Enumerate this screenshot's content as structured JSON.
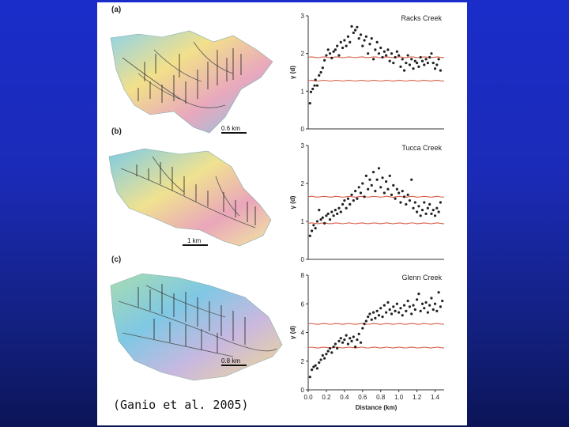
{
  "citation": "(Ganio et al. 2005)",
  "panels": [
    {
      "label": "(a)",
      "scale": "0.6 km"
    },
    {
      "label": "(b)",
      "scale": "1 km"
    },
    {
      "label": "(c)",
      "scale": "0.8 km"
    }
  ],
  "colors": {
    "background": "#1a2dc9",
    "points": "#222222",
    "envelope": "#d9604a",
    "map_high": "#e8b0c0",
    "map_low": "#7fd0e8"
  },
  "chart_data": [
    {
      "type": "scatter",
      "title": "Racks Creek",
      "xlabel": "",
      "ylabel": "γ (d)",
      "xlim": [
        0,
        1.5
      ],
      "ylim": [
        0,
        3
      ],
      "yticks": [
        0,
        1,
        2,
        3
      ],
      "xticks": [],
      "series": [
        {
          "values": [
            [
              0.02,
              0.68
            ],
            [
              0.03,
              0.98
            ],
            [
              0.05,
              1.06
            ],
            [
              0.07,
              1.15
            ],
            [
              0.08,
              1.3
            ],
            [
              0.1,
              1.15
            ],
            [
              0.12,
              1.42
            ],
            [
              0.14,
              1.5
            ],
            [
              0.16,
              1.62
            ],
            [
              0.18,
              1.82
            ],
            [
              0.2,
              1.95
            ],
            [
              0.22,
              2.1
            ],
            [
              0.24,
              2.0
            ],
            [
              0.26,
              1.88
            ],
            [
              0.28,
              2.05
            ],
            [
              0.3,
              2.1
            ],
            [
              0.32,
              2.2
            ],
            [
              0.34,
              1.95
            ],
            [
              0.36,
              2.3
            ],
            [
              0.38,
              2.15
            ],
            [
              0.4,
              2.35
            ],
            [
              0.42,
              2.2
            ],
            [
              0.44,
              2.45
            ],
            [
              0.46,
              2.3
            ],
            [
              0.48,
              2.72
            ],
            [
              0.5,
              2.55
            ],
            [
              0.52,
              2.62
            ],
            [
              0.54,
              2.7
            ],
            [
              0.56,
              2.4
            ],
            [
              0.58,
              2.5
            ],
            [
              0.6,
              2.2
            ],
            [
              0.62,
              2.35
            ],
            [
              0.64,
              2.45
            ],
            [
              0.66,
              2.0
            ],
            [
              0.68,
              2.25
            ],
            [
              0.7,
              2.4
            ],
            [
              0.72,
              1.85
            ],
            [
              0.74,
              2.1
            ],
            [
              0.76,
              2.3
            ],
            [
              0.78,
              2.0
            ],
            [
              0.8,
              2.15
            ],
            [
              0.82,
              1.9
            ],
            [
              0.84,
              2.05
            ],
            [
              0.86,
              1.95
            ],
            [
              0.88,
              2.1
            ],
            [
              0.9,
              1.8
            ],
            [
              0.92,
              2.0
            ],
            [
              0.94,
              1.75
            ],
            [
              0.96,
              1.9
            ],
            [
              0.98,
              2.05
            ],
            [
              1.0,
              1.95
            ],
            [
              1.02,
              1.65
            ],
            [
              1.04,
              1.85
            ],
            [
              1.06,
              1.55
            ],
            [
              1.08,
              1.75
            ],
            [
              1.1,
              1.95
            ],
            [
              1.12,
              1.7
            ],
            [
              1.14,
              1.85
            ],
            [
              1.16,
              1.6
            ],
            [
              1.18,
              1.8
            ],
            [
              1.2,
              1.75
            ],
            [
              1.22,
              1.65
            ],
            [
              1.24,
              1.9
            ],
            [
              1.26,
              1.8
            ],
            [
              1.28,
              1.7
            ],
            [
              1.3,
              1.85
            ],
            [
              1.32,
              1.75
            ],
            [
              1.34,
              1.9
            ],
            [
              1.36,
              2.0
            ],
            [
              1.38,
              1.75
            ],
            [
              1.4,
              1.6
            ],
            [
              1.42,
              1.7
            ],
            [
              1.44,
              1.85
            ],
            [
              1.46,
              1.55
            ]
          ]
        }
      ],
      "envelope": [
        1.9,
        1.28
      ]
    },
    {
      "type": "scatter",
      "title": "Tucca Creek",
      "xlabel": "",
      "ylabel": "γ (d)",
      "xlim": [
        0,
        1.5
      ],
      "ylim": [
        0,
        3
      ],
      "yticks": [
        0,
        1,
        2,
        3
      ],
      "xticks": [],
      "series": [
        {
          "values": [
            [
              0.02,
              0.62
            ],
            [
              0.04,
              0.75
            ],
            [
              0.06,
              0.9
            ],
            [
              0.08,
              0.82
            ],
            [
              0.1,
              1.0
            ],
            [
              0.12,
              1.3
            ],
            [
              0.14,
              1.05
            ],
            [
              0.16,
              1.1
            ],
            [
              0.18,
              0.95
            ],
            [
              0.2,
              1.15
            ],
            [
              0.22,
              1.2
            ],
            [
              0.24,
              1.05
            ],
            [
              0.26,
              1.25
            ],
            [
              0.28,
              1.15
            ],
            [
              0.3,
              1.3
            ],
            [
              0.32,
              1.2
            ],
            [
              0.34,
              1.35
            ],
            [
              0.36,
              1.25
            ],
            [
              0.38,
              1.45
            ],
            [
              0.4,
              1.55
            ],
            [
              0.42,
              1.35
            ],
            [
              0.44,
              1.6
            ],
            [
              0.46,
              1.45
            ],
            [
              0.48,
              1.7
            ],
            [
              0.5,
              1.55
            ],
            [
              0.52,
              1.8
            ],
            [
              0.54,
              1.6
            ],
            [
              0.56,
              1.9
            ],
            [
              0.58,
              1.75
            ],
            [
              0.6,
              2.0
            ],
            [
              0.62,
              1.65
            ],
            [
              0.64,
              2.2
            ],
            [
              0.66,
              1.85
            ],
            [
              0.68,
              2.1
            ],
            [
              0.7,
              1.95
            ],
            [
              0.72,
              2.3
            ],
            [
              0.74,
              1.8
            ],
            [
              0.76,
              2.1
            ],
            [
              0.78,
              2.4
            ],
            [
              0.8,
              1.9
            ],
            [
              0.82,
              2.15
            ],
            [
              0.84,
              1.75
            ],
            [
              0.86,
              2.05
            ],
            [
              0.88,
              1.85
            ],
            [
              0.9,
              2.2
            ],
            [
              0.92,
              1.7
            ],
            [
              0.94,
              1.95
            ],
            [
              0.96,
              1.6
            ],
            [
              0.98,
              1.85
            ],
            [
              1.0,
              1.75
            ],
            [
              1.02,
              1.5
            ],
            [
              1.04,
              1.8
            ],
            [
              1.06,
              1.65
            ],
            [
              1.08,
              1.45
            ],
            [
              1.1,
              1.7
            ],
            [
              1.12,
              1.55
            ],
            [
              1.14,
              2.1
            ],
            [
              1.16,
              1.35
            ],
            [
              1.18,
              1.5
            ],
            [
              1.2,
              1.25
            ],
            [
              1.22,
              1.4
            ],
            [
              1.24,
              1.15
            ],
            [
              1.26,
              1.3
            ],
            [
              1.28,
              1.5
            ],
            [
              1.3,
              1.2
            ],
            [
              1.32,
              1.35
            ],
            [
              1.34,
              1.45
            ],
            [
              1.36,
              1.2
            ],
            [
              1.38,
              1.3
            ],
            [
              1.4,
              1.15
            ],
            [
              1.42,
              1.35
            ],
            [
              1.44,
              1.25
            ],
            [
              1.46,
              1.5
            ]
          ]
        }
      ],
      "envelope": [
        1.65,
        0.95
      ]
    },
    {
      "type": "scatter",
      "title": "Glenn Creek",
      "xlabel": "Distance (km)",
      "ylabel": "γ (d)",
      "xlim": [
        0,
        1.5
      ],
      "ylim": [
        0,
        8
      ],
      "yticks": [
        0,
        2,
        4,
        6,
        8
      ],
      "xticks": [
        "0.0",
        "0.2",
        "0.4",
        "0.6",
        "0.8",
        "1.0",
        "1.2",
        "1.4"
      ],
      "series": [
        {
          "values": [
            [
              0.02,
              0.9
            ],
            [
              0.04,
              1.4
            ],
            [
              0.06,
              1.6
            ],
            [
              0.08,
              1.7
            ],
            [
              0.1,
              1.5
            ],
            [
              0.12,
              1.9
            ],
            [
              0.14,
              2.1
            ],
            [
              0.16,
              2.4
            ],
            [
              0.18,
              2.2
            ],
            [
              0.2,
              2.5
            ],
            [
              0.22,
              2.7
            ],
            [
              0.24,
              2.9
            ],
            [
              0.26,
              2.6
            ],
            [
              0.28,
              3.0
            ],
            [
              0.3,
              3.2
            ],
            [
              0.32,
              2.9
            ],
            [
              0.34,
              3.4
            ],
            [
              0.36,
              3.6
            ],
            [
              0.38,
              3.3
            ],
            [
              0.4,
              3.5
            ],
            [
              0.42,
              3.8
            ],
            [
              0.44,
              3.2
            ],
            [
              0.46,
              3.6
            ],
            [
              0.48,
              3.4
            ],
            [
              0.5,
              3.7
            ],
            [
              0.52,
              3.0
            ],
            [
              0.54,
              3.5
            ],
            [
              0.56,
              3.9
            ],
            [
              0.58,
              3.3
            ],
            [
              0.6,
              4.3
            ],
            [
              0.62,
              4.6
            ],
            [
              0.64,
              4.8
            ],
            [
              0.66,
              5.1
            ],
            [
              0.68,
              5.3
            ],
            [
              0.7,
              4.9
            ],
            [
              0.72,
              5.4
            ],
            [
              0.74,
              5.0
            ],
            [
              0.76,
              5.5
            ],
            [
              0.78,
              5.2
            ],
            [
              0.8,
              5.7
            ],
            [
              0.82,
              5.1
            ],
            [
              0.84,
              5.9
            ],
            [
              0.86,
              5.4
            ],
            [
              0.88,
              6.1
            ],
            [
              0.9,
              5.6
            ],
            [
              0.92,
              5.3
            ],
            [
              0.94,
              5.8
            ],
            [
              0.96,
              5.5
            ],
            [
              0.98,
              6.0
            ],
            [
              1.0,
              5.4
            ],
            [
              1.02,
              5.7
            ],
            [
              1.04,
              5.2
            ],
            [
              1.06,
              5.9
            ],
            [
              1.08,
              5.5
            ],
            [
              1.1,
              6.2
            ],
            [
              1.12,
              5.8
            ],
            [
              1.14,
              5.3
            ],
            [
              1.16,
              5.9
            ],
            [
              1.18,
              5.6
            ],
            [
              1.2,
              6.3
            ],
            [
              1.22,
              6.7
            ],
            [
              1.24,
              5.5
            ],
            [
              1.26,
              6.0
            ],
            [
              1.28,
              5.7
            ],
            [
              1.3,
              6.1
            ],
            [
              1.32,
              5.4
            ],
            [
              1.34,
              5.9
            ],
            [
              1.36,
              6.4
            ],
            [
              1.38,
              5.6
            ],
            [
              1.4,
              6.0
            ],
            [
              1.42,
              5.5
            ],
            [
              1.44,
              6.8
            ],
            [
              1.46,
              5.8
            ],
            [
              1.48,
              6.2
            ]
          ]
        }
      ],
      "envelope": [
        4.6,
        2.95
      ]
    }
  ]
}
